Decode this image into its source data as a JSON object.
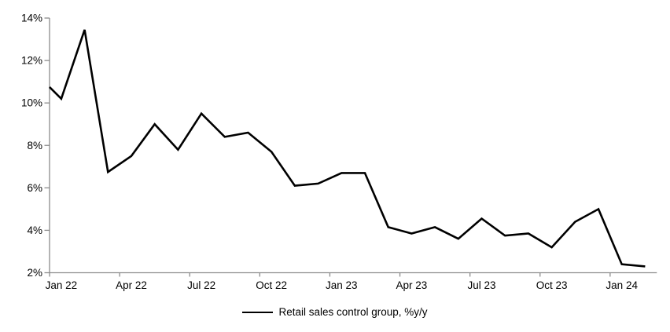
{
  "chart_data": {
    "type": "line",
    "title": "",
    "xlabel": "",
    "ylabel": "",
    "x": [
      "Jan 22",
      "Feb 22",
      "Mar 22",
      "Apr 22",
      "May 22",
      "Jun 22",
      "Jul 22",
      "Aug 22",
      "Sep 22",
      "Oct 22",
      "Nov 22",
      "Dec 22",
      "Jan 23",
      "Feb 23",
      "Mar 23",
      "Apr 23",
      "May 23",
      "Jun 23",
      "Jul 23",
      "Aug 23",
      "Sep 23",
      "Oct 23",
      "Nov 23",
      "Dec 23",
      "Jan 24",
      "Feb 24"
    ],
    "series": [
      {
        "name": "Retail sales control group, %y/y",
        "color": "#000000",
        "values": [
          10.2,
          13.45,
          6.75,
          7.5,
          9.0,
          7.8,
          9.5,
          8.4,
          8.6,
          7.7,
          6.1,
          6.2,
          6.7,
          6.7,
          4.15,
          3.85,
          4.15,
          3.6,
          4.55,
          3.75,
          3.85,
          3.2,
          4.4,
          5.0,
          2.4,
          2.3
        ],
        "lead_in_edge_value": 10.75
      }
    ],
    "x_tick_labels": [
      "Jan 22",
      "Apr 22",
      "Jul 22",
      "Oct 22",
      "Jan 23",
      "Apr 23",
      "Jul 23",
      "Oct 23",
      "Jan 24"
    ],
    "y_ticks": [
      2,
      4,
      6,
      8,
      10,
      12,
      14
    ],
    "y_tick_suffix": "%",
    "ylim": [
      2,
      14
    ],
    "grid": false,
    "legend_position": "bottom-center",
    "axis_color": "#8c8c8c",
    "text_color": "#000000"
  }
}
